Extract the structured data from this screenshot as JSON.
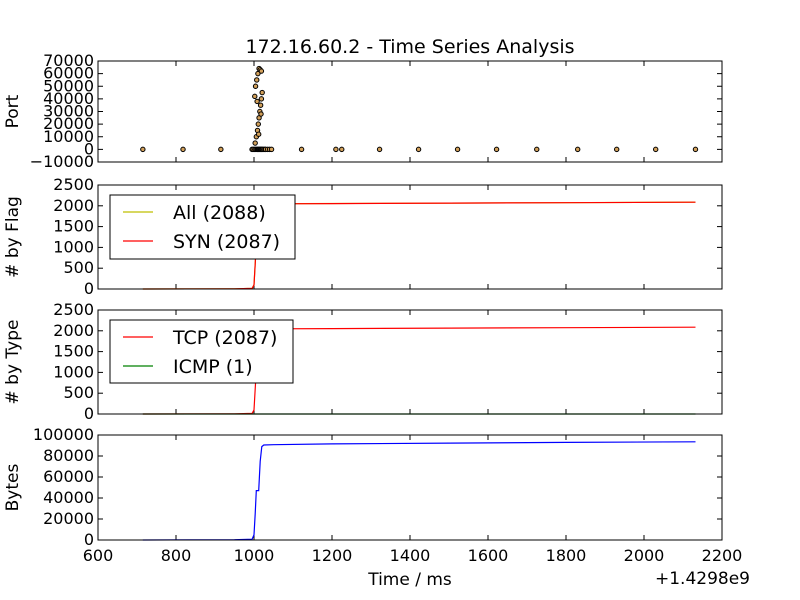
{
  "chart_data": {
    "type": "line",
    "title": "172.16.60.2 - Time Series Analysis",
    "xlabel": "Time / ms",
    "x_offset_label": "+1.4298e9",
    "xlim": [
      600,
      2200
    ],
    "x_ticks": [
      "600",
      "800",
      "1000",
      "1200",
      "1400",
      "1600",
      "1800",
      "2000",
      "2200"
    ],
    "colors": {
      "all": "#bfbf00",
      "syn": "#ff0000",
      "tcp": "#ff0000",
      "icmp": "#008000",
      "bytes": "#0000ff",
      "port_marker_edge": "#000000",
      "port_marker_fill": "#d2a05a"
    },
    "panels": [
      {
        "type": "scatter",
        "ylabel": "Port",
        "ylim": [
          -10000,
          70000
        ],
        "y_ticks": [
          "70000",
          "60000",
          "50000",
          "40000",
          "30000",
          "20000",
          "10000",
          "0",
          "−10000"
        ],
        "points": [
          [
            715,
            0
          ],
          [
            818,
            0
          ],
          [
            915,
            0
          ],
          [
            995,
            0
          ],
          [
            998,
            0
          ],
          [
            1002,
            0
          ],
          [
            1005,
            0
          ],
          [
            1008,
            0
          ],
          [
            1010,
            0
          ],
          [
            1012,
            0
          ],
          [
            1014,
            0
          ],
          [
            1016,
            0
          ],
          [
            1018,
            0
          ],
          [
            1020,
            0
          ],
          [
            1022,
            0
          ],
          [
            1025,
            0
          ],
          [
            1028,
            0
          ],
          [
            1030,
            0
          ],
          [
            1035,
            0
          ],
          [
            1040,
            0
          ],
          [
            1045,
            0
          ],
          [
            1003,
            5000
          ],
          [
            1006,
            10000
          ],
          [
            1009,
            15000
          ],
          [
            1011,
            20000
          ],
          [
            1013,
            25000
          ],
          [
            1015,
            30000
          ],
          [
            1017,
            35000
          ],
          [
            1019,
            40000
          ],
          [
            1021,
            45000
          ],
          [
            1004,
            50000
          ],
          [
            1007,
            55000
          ],
          [
            1010,
            60000
          ],
          [
            1013,
            64000
          ],
          [
            1016,
            63000
          ],
          [
            1019,
            62000
          ],
          [
            1002,
            42000
          ],
          [
            1018,
            28000
          ],
          [
            1012,
            12000
          ],
          [
            1008,
            38000
          ],
          [
            1122,
            0
          ],
          [
            1210,
            0
          ],
          [
            1225,
            0
          ],
          [
            1322,
            0
          ],
          [
            1422,
            0
          ],
          [
            1522,
            0
          ],
          [
            1622,
            0
          ],
          [
            1725,
            0
          ],
          [
            1830,
            0
          ],
          [
            1930,
            0
          ],
          [
            2030,
            0
          ],
          [
            2132,
            0
          ]
        ]
      },
      {
        "type": "line",
        "ylabel": "# by Flag",
        "ylim": [
          0,
          2500
        ],
        "y_ticks": [
          "2500",
          "2000",
          "1500",
          "1000",
          "500",
          "0"
        ],
        "legend_position": "upper-left",
        "series": [
          {
            "name": "All (2088)",
            "color_key": "all",
            "points": [
              [
                715,
                1
              ],
              [
                950,
                5
              ],
              [
                995,
                15
              ],
              [
                1000,
                100
              ],
              [
                1005,
                900
              ],
              [
                1010,
                1900
              ],
              [
                1020,
                2040
              ],
              [
                1050,
                2050
              ],
              [
                1200,
                2055
              ],
              [
                1500,
                2065
              ],
              [
                1800,
                2075
              ],
              [
                2132,
                2088
              ]
            ]
          },
          {
            "name": "SYN (2087)",
            "color_key": "syn",
            "points": [
              [
                715,
                0
              ],
              [
                950,
                4
              ],
              [
                995,
                14
              ],
              [
                1000,
                99
              ],
              [
                1005,
                899
              ],
              [
                1010,
                1899
              ],
              [
                1020,
                2039
              ],
              [
                1050,
                2049
              ],
              [
                1200,
                2054
              ],
              [
                1500,
                2064
              ],
              [
                1800,
                2074
              ],
              [
                2132,
                2087
              ]
            ]
          }
        ]
      },
      {
        "type": "line",
        "ylabel": "# by Type",
        "ylim": [
          0,
          2500
        ],
        "y_ticks": [
          "2500",
          "2000",
          "1500",
          "1000",
          "500",
          "0"
        ],
        "legend_position": "upper-left",
        "series": [
          {
            "name": "TCP (2087)",
            "color_key": "tcp",
            "points": [
              [
                715,
                0
              ],
              [
                950,
                4
              ],
              [
                995,
                14
              ],
              [
                1000,
                99
              ],
              [
                1005,
                899
              ],
              [
                1010,
                1899
              ],
              [
                1020,
                2039
              ],
              [
                1050,
                2049
              ],
              [
                1200,
                2054
              ],
              [
                1500,
                2064
              ],
              [
                1800,
                2074
              ],
              [
                2132,
                2087
              ]
            ]
          },
          {
            "name": "ICMP (1)",
            "color_key": "icmp",
            "points": [
              [
                715,
                1
              ],
              [
                2132,
                1
              ]
            ]
          }
        ]
      },
      {
        "type": "line",
        "ylabel": "Bytes",
        "ylim": [
          0,
          100000
        ],
        "y_ticks": [
          "100000",
          "80000",
          "60000",
          "40000",
          "20000",
          "0"
        ],
        "series": [
          {
            "name": "",
            "color_key": "bytes",
            "points": [
              [
                715,
                0
              ],
              [
                950,
                300
              ],
              [
                995,
                800
              ],
              [
                1000,
                5000
              ],
              [
                1003,
                25000
              ],
              [
                1006,
                47000
              ],
              [
                1012,
                47000
              ],
              [
                1016,
                75000
              ],
              [
                1020,
                89000
              ],
              [
                1025,
                90500
              ],
              [
                1050,
                90800
              ],
              [
                1200,
                91500
              ],
              [
                1500,
                92300
              ],
              [
                1800,
                93000
              ],
              [
                2132,
                93500
              ]
            ]
          }
        ]
      }
    ]
  }
}
